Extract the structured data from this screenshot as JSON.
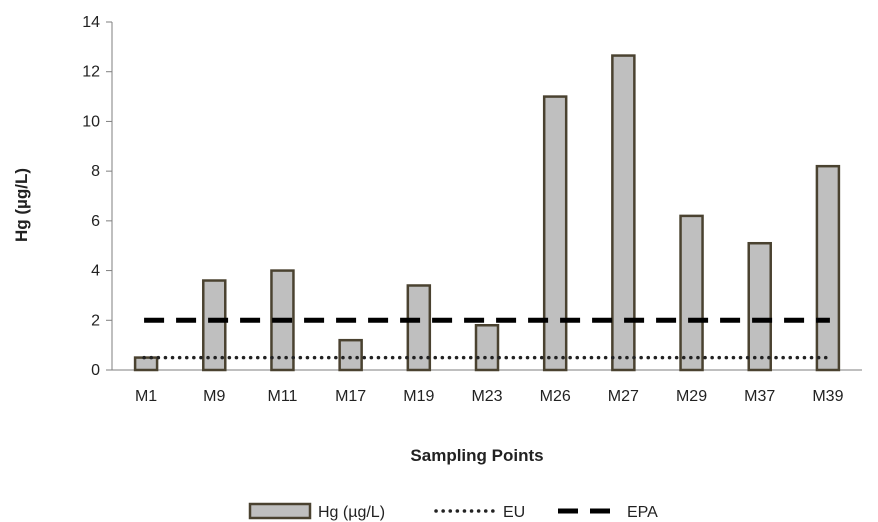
{
  "chart_data": {
    "type": "bar",
    "categories": [
      "M1",
      "M9",
      "M11",
      "M17",
      "M19",
      "M23",
      "M26",
      "M27",
      "M29",
      "M37",
      "M39"
    ],
    "series": [
      {
        "name": "Hg (µg/L)",
        "kind": "bar",
        "values": [
          0.5,
          3.6,
          4.0,
          1.2,
          3.4,
          1.8,
          11.0,
          12.65,
          6.2,
          5.1,
          8.2
        ],
        "fill": "#bfbfbf",
        "stroke": "#4a4230"
      }
    ],
    "reference_lines": [
      {
        "name": "EU",
        "value": 0.5,
        "style": "dotted",
        "color": "#222222"
      },
      {
        "name": "EPA",
        "value": 2,
        "style": "dashed",
        "color": "#000000"
      }
    ],
    "title": "",
    "xlabel": "Sampling Points",
    "ylabel": "Hg (µg/L)",
    "ylim": [
      0,
      14
    ],
    "yticks": [
      "0",
      "2",
      "4",
      "6",
      "8",
      "10",
      "12",
      "14"
    ],
    "grid": false,
    "legend": {
      "position": "bottom",
      "entries": [
        "Hg (µg/L)",
        "EU",
        "EPA"
      ]
    }
  }
}
